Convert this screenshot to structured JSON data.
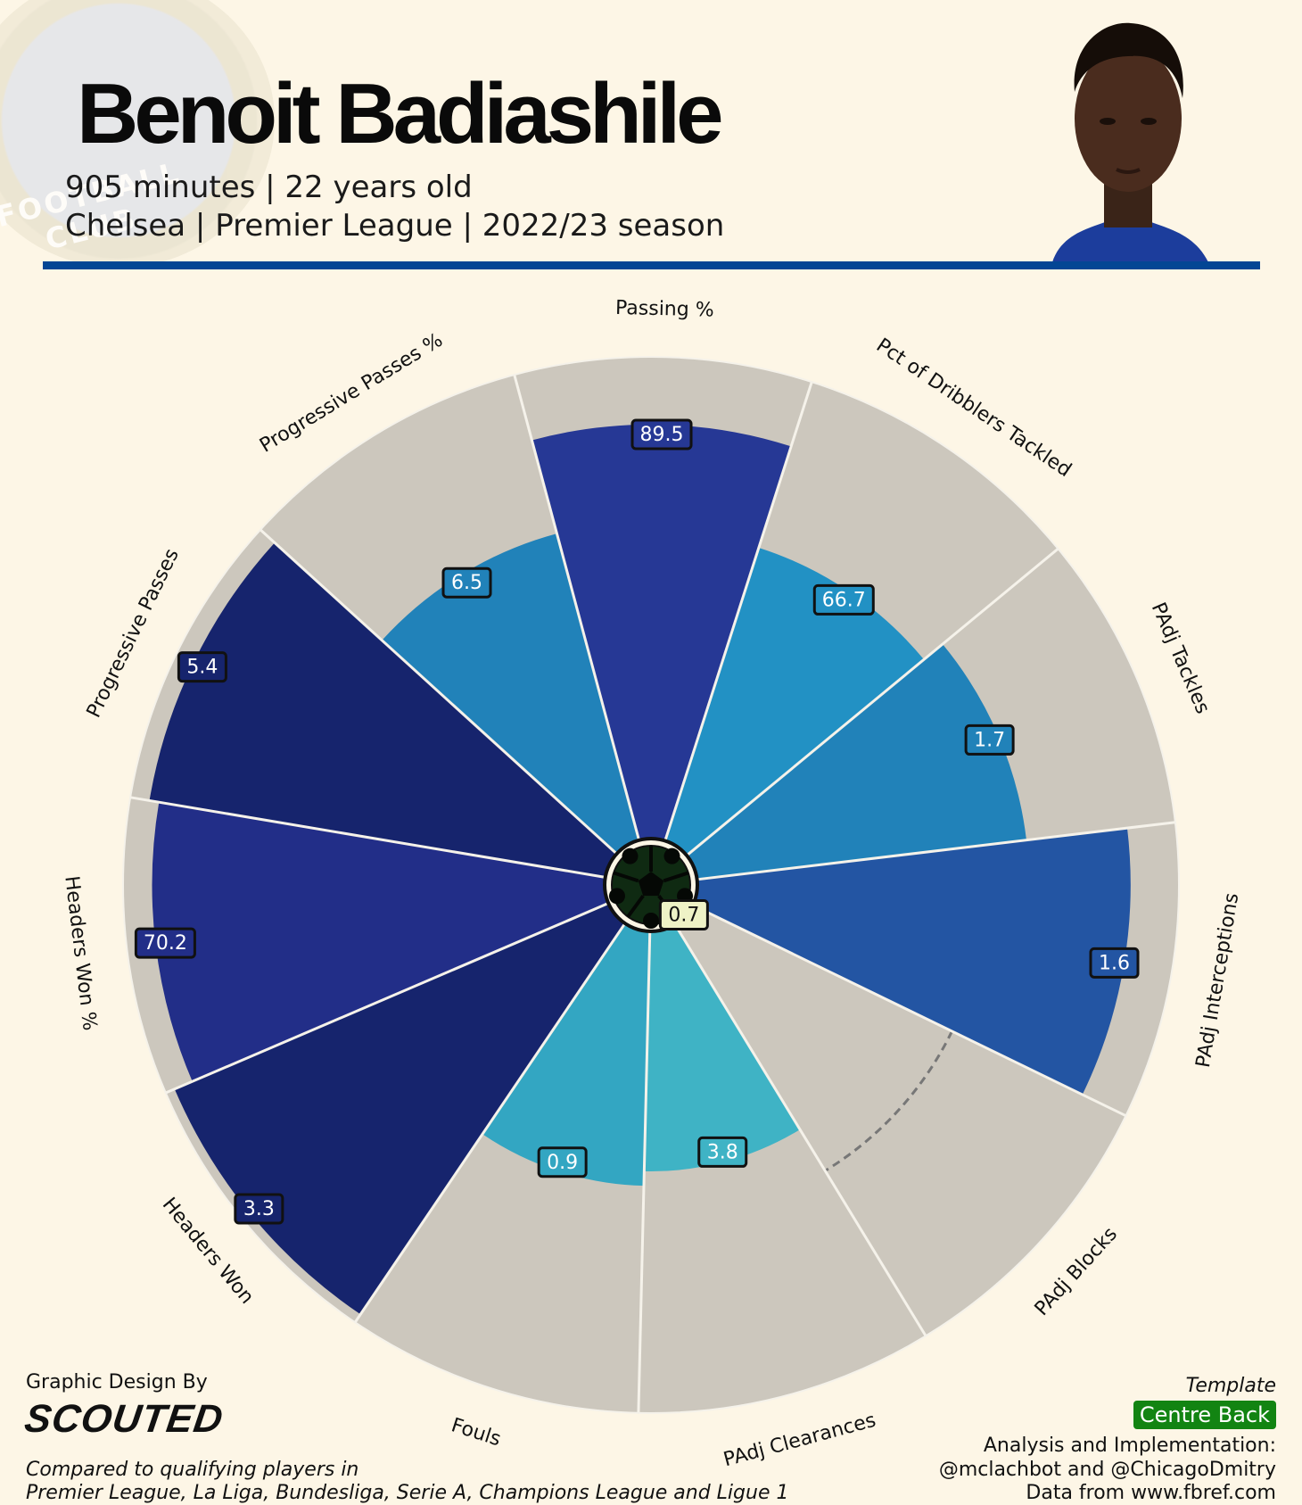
{
  "header": {
    "name": "Benoit Badiashile",
    "subtitle_line1": "905 minutes | 22 years old",
    "subtitle_line2": "Chelsea | Premier League | 2022/23 season",
    "crest_text": "FOOTBALL CLUB",
    "rule_color": "#034694"
  },
  "chart_data": {
    "type": "pie",
    "variant": "radar-pizza",
    "radial_range": [
      0,
      100
    ],
    "slices": [
      {
        "label": "Passing %",
        "value": 89.5,
        "percentile": 86,
        "color": "#263895"
      },
      {
        "label": "Pct of Dribblers Tackled",
        "value": 66.7,
        "percentile": 64,
        "color": "#2291c4"
      },
      {
        "label": "PAdj Tackles",
        "value": 1.7,
        "percentile": 69,
        "color": "#2182b9"
      },
      {
        "label": "PAdj Interceptions",
        "value": 1.6,
        "percentile": 90,
        "color": "#2355a3"
      },
      {
        "label": "PAdj Blocks",
        "value": 0.7,
        "percentile": 2,
        "color": "#eef2c6",
        "ref_percentile": 60
      },
      {
        "label": "PAdj Clearances",
        "value": 3.8,
        "percentile": 50,
        "color": "#3fb3c5"
      },
      {
        "label": "Fouls",
        "value": 0.9,
        "percentile": 53,
        "color": "#33a6c2"
      },
      {
        "label": "Headers Won",
        "value": 3.3,
        "percentile": 98,
        "color": "#16246d"
      },
      {
        "label": "Headers Won %",
        "value": 70.2,
        "percentile": 94,
        "color": "#222e88"
      },
      {
        "label": "Progressive Passes",
        "value": 5.4,
        "percentile": 96,
        "color": "#16246d"
      },
      {
        "label": "Progressive Passes %",
        "value": 6.5,
        "percentile": 66,
        "color": "#2182b9"
      }
    ],
    "background_color": "#ccc7bd"
  },
  "footer": {
    "design_by": "Graphic Design By",
    "brand": "SCOUTED",
    "footnote_line1": "Compared to qualifying players in",
    "footnote_line2": "Premier League, La Liga, Bundesliga, Serie A, Champions League and Ligue 1",
    "template_label": "Template",
    "template_value": "Centre Back",
    "credit_line1": "Analysis and Implementation:",
    "credit_line2": "@mclachbot and @ChicagoDmitry",
    "credit_line3": "Data from www.fbref.com"
  }
}
